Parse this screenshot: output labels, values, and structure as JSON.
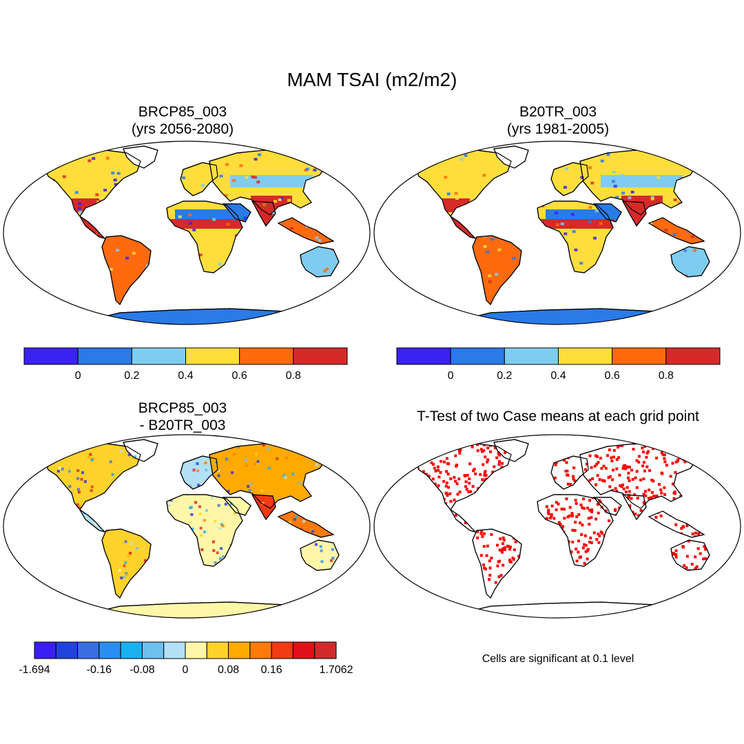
{
  "title": "MAM TSAI (m2/m2)",
  "panels": {
    "top_left": {
      "title_line1": "BRCP85_003",
      "title_line2": "(yrs 2056-2080)"
    },
    "top_right": {
      "title_line1": "B20TR_003",
      "title_line2": "(yrs 1981-2005)"
    },
    "bottom_left": {
      "title_line1": "BRCP85_003",
      "title_line2": "- B20TR_003"
    },
    "bottom_right": {
      "title_line1": "T-Test of two Case means at each grid point"
    }
  },
  "colorbar_abs": {
    "colors": [
      "#3a22f2",
      "#2a7ae8",
      "#7ecdf0",
      "#ffde3c",
      "#ff6a0f",
      "#d62a2a"
    ],
    "labels": [
      "0",
      "0.2",
      "0.4",
      "0.6",
      "0.8"
    ]
  },
  "colorbar_diff": {
    "colors": [
      "#3a1ef2",
      "#2242dc",
      "#3a6ee0",
      "#2a8ef0",
      "#1ab0f2",
      "#6ec0ee",
      "#b2e0f4",
      "#fff7a8",
      "#ffd22c",
      "#ffaa00",
      "#ff7a0a",
      "#f23a14",
      "#e0101a",
      "#d02a2a"
    ],
    "labels": [
      "-1.694",
      "-0.16",
      "-0.08",
      "0",
      "0.08",
      "0.16",
      "1.7062"
    ]
  },
  "significance_note": "Cells are significant at 0.1 level",
  "colors": {
    "significant": "#ff0000",
    "diff_background": "#fff7a8",
    "antarctica_abs": "#2a7ae8"
  }
}
